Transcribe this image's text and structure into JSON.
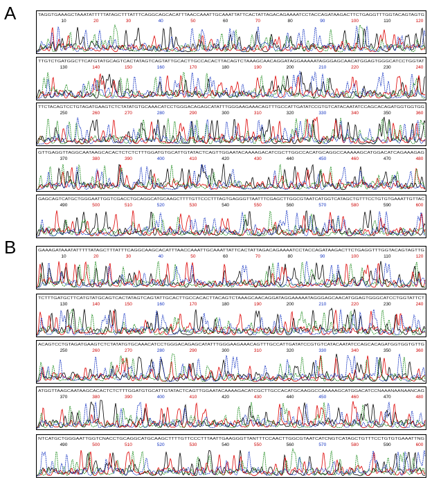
{
  "panels": [
    {
      "label": "A",
      "rows": [
        {
          "sequence": "TAGGTGAAAGCTAAATATTTTTATAGCTTTATTTCAGGCAGCACATTTAACCAAATTGCAAATTATTCACTATTAGACAGAAAATCCTACCAGATAAGACTTCTGAGGTTTGGTACAGTAGTG",
          "positions": [
            10,
            20,
            30,
            40,
            50,
            60,
            70,
            80,
            90,
            100,
            110,
            120
          ]
        },
        {
          "sequence": "TTGTCTGATGGCTTCATGTATGCAGTCACTATAGTCAGTATTGCACTTGCCACACTTACAGTCTAAAGCAACAGGATAGGAAAAATAGGGAGCAACATGGAGTGGGCATCCTGGTAT",
          "positions": [
            130,
            140,
            150,
            160,
            170,
            180,
            190,
            200,
            210,
            220,
            230,
            240
          ]
        },
        {
          "sequence": "TTCTACAGTCCTGTAGATGAAGTCTCTATATGTGCAAACATCCTGGGACAGAGCATATTTGGGAAGAAACAGTTTGCCATTGATATCCGTGTCATACAATATCCAGCACAGATGGTGGTGG",
          "positions": [
            250,
            260,
            270,
            280,
            290,
            300,
            310,
            320,
            330,
            340,
            350,
            360
          ]
        },
        {
          "sequence": "GTTGAGGTTAGGCAATAAGCACACTCTCTCTTTGGATGTGCATTGTATACTCAGTTGGAATACAAAAGACATCGCTTGGCCACATGCAGGCCAAAAAGCATGGACATCAGAAAGAG",
          "positions": [
            370,
            380,
            390,
            400,
            410,
            420,
            430,
            440,
            450,
            460,
            470,
            480
          ]
        },
        {
          "sequence": "GAGCAGTCATGCTGGGAATTGGTCGACCTGCAGGCATGCAAGCTTTTGTTCCCTTTAGTGAGGGTTAATTTCGAGCTTGGCGTAATCATGGTCATAGCTGTTTCCTGTGTGAAATTGTTAC",
          "positions": [
            490,
            500,
            510,
            520,
            530,
            540,
            550,
            560,
            570,
            580,
            590,
            600
          ]
        }
      ]
    },
    {
      "label": "B",
      "rows": [
        {
          "sequence": "GAAAGATAAATATTTTTATAGCTTTATTTCAGGCAAGCACATTTAACCAAATTGCAAATTATTCACTATTAGACAGAAAATCCTACCAGATAAGACTTCTGAGGTTTGGTACAGTAGTTG",
          "positions": [
            10,
            20,
            30,
            40,
            50,
            60,
            70,
            80,
            90,
            100,
            110,
            120
          ]
        },
        {
          "sequence": "TCTTTGATGCTTCATGTATGCAGTCACTATAGTCAGTATTGCACTTGCCACACTTACAGTCTAAAGCAACAGGATAGGAAAAATAGGGAGCAACATGGAGTGGGCATCCTGGTATTCT",
          "positions": [
            130,
            140,
            150,
            160,
            170,
            180,
            190,
            200,
            210,
            220,
            230,
            240
          ]
        },
        {
          "sequence": "ACAGTCCTGTAGATGAAGTCTCTATATGTGCAAACATCCTGGGACAGAGCATATTTGGGAAGAAACAGTTTGCCATTGATATCCGTGTCATACAATATCCAGCACAGATGGTGGTGTTG",
          "positions": [
            250,
            260,
            270,
            280,
            290,
            300,
            310,
            320,
            330,
            340,
            350,
            360
          ]
        },
        {
          "sequence": "ATGGTTAAGCAATAAGCACACTCTCTTTGGATGTGCATTGTATACTCAGTTGGAATACAAAAGACATCGCTTGCCACATGCAAGGCCAAAAAGCATGGACATCCNAAANAANAANCAG",
          "positions": [
            370,
            380,
            390,
            400,
            410,
            420,
            430,
            440,
            450,
            460,
            470,
            480
          ]
        },
        {
          "sequence": "NTCATGCTGGGAATTGGTCNACCTGCAGGCATGCAAGCTTTTGTTCCCTTTAATTGAAGGGTTANTTTCCAACTTGGCGTAATCATCNGTCATAGCTGTTTCCTGTGTGAAATTNG",
          "positions": [
            490,
            500,
            510,
            520,
            530,
            540,
            550,
            560,
            570,
            580,
            590,
            600
          ]
        }
      ]
    }
  ]
}
